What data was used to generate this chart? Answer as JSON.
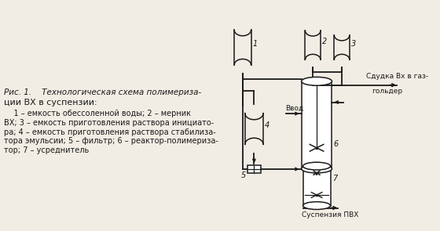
{
  "bg_color": "#f2ede4",
  "line_color": "#1a1a1a",
  "title_line1": "Рис. 1.    Технологическая схема полимериза-",
  "title_line2": "ции ВХ в суспензии:",
  "legend_lines": [
    "    1 – емкость обессоленной воды; 2 – мерник",
    "ВХ; 3 – емкость приготовления раствора инициато-",
    "ра; 4 – емкость приготовления раствора стабилиза-",
    "тора эмульсии; 5 – фильтр; 6 – реактор-полимериза-",
    "тор; 7 – усреднитель"
  ],
  "label_1": "1",
  "label_2": "2",
  "label_3": "3",
  "label_4": "4",
  "label_5": "5",
  "label_6": "6",
  "label_7": "7",
  "text_sliv1": "Сдудка Вх в газ-",
  "text_sliv2": "гольдер",
  "text_vvod": "Ввод",
  "text_suspenziya": "Суспензия ПВХ"
}
